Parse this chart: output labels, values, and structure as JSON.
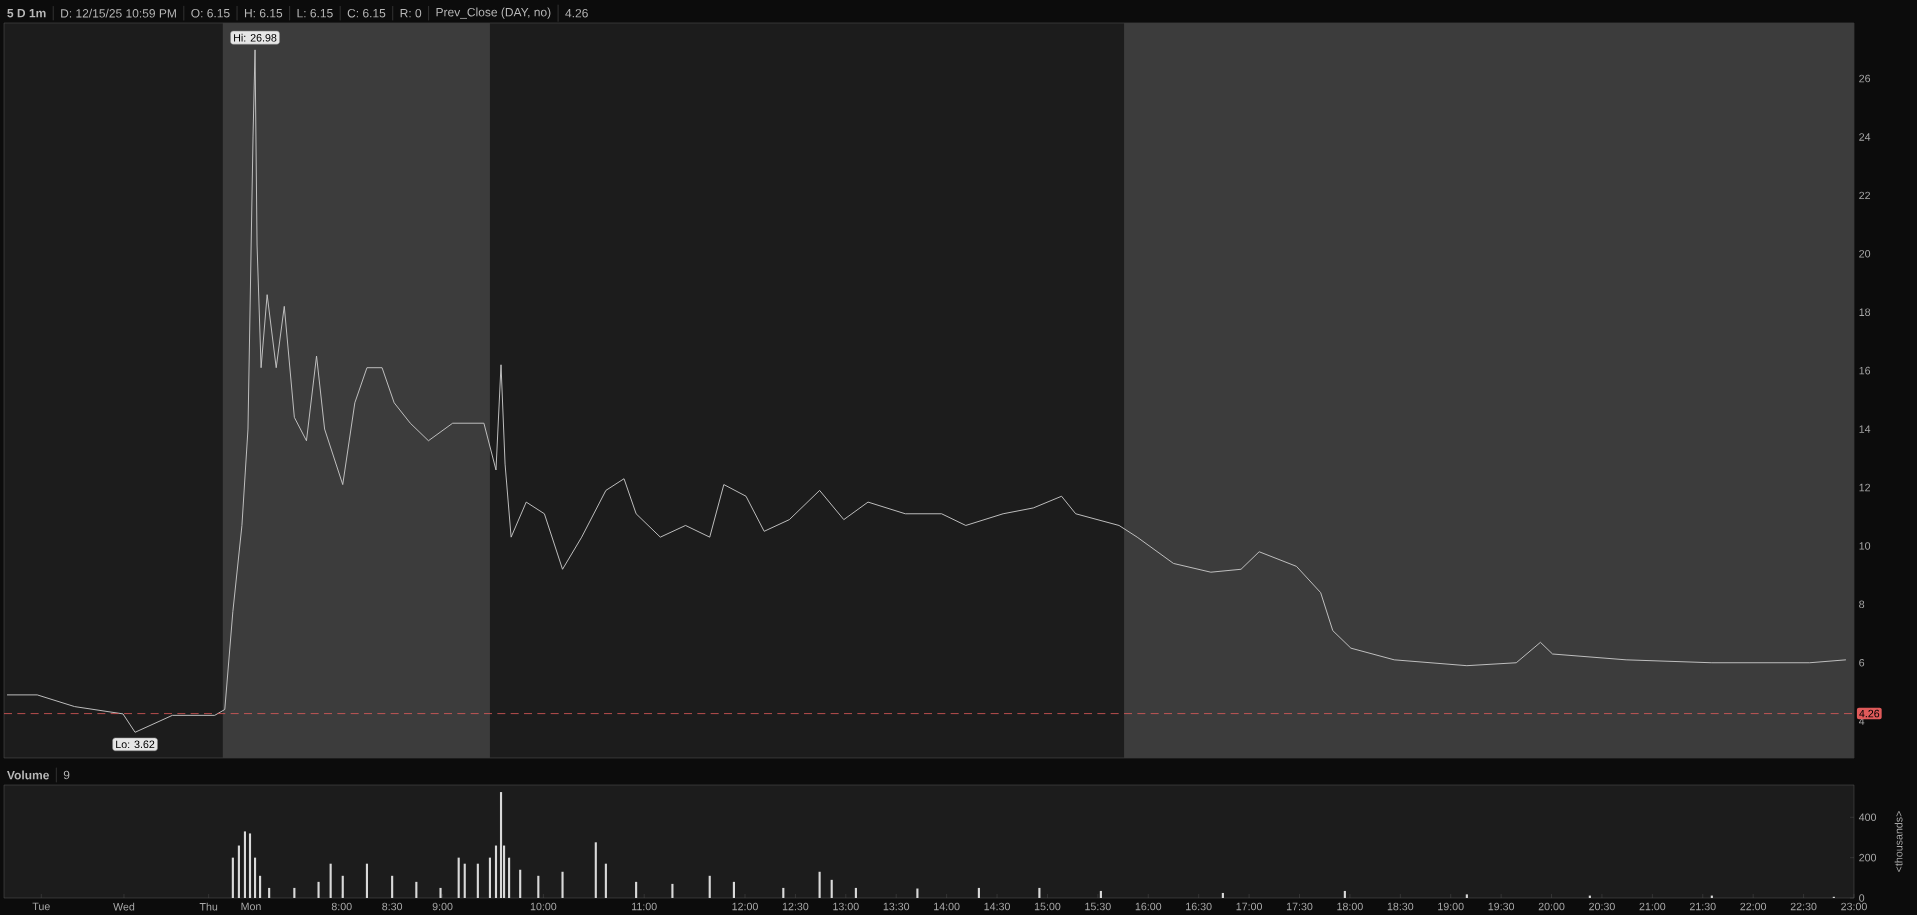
{
  "chart_data": [
    {
      "type": "line",
      "title": "5 D 1m",
      "subtitle": "D: 12/15/25 10:59 PM",
      "annotations": [
        "O: 6.15",
        "H: 6.15",
        "L: 6.15",
        "C: 6.15",
        "R: 0",
        "Prev_Close (DAY, no)",
        "4.26",
        {
          "text": "Hi: 26.98",
          "x": 7.14,
          "y": 26.98
        },
        {
          "text": "Lo: 3.62",
          "x": 5.95,
          "y": 3.62
        }
      ],
      "x": [
        4.68,
        4.98,
        5.35,
        5.83,
        5.95,
        6.32,
        6.74,
        6.84,
        6.92,
        7.01,
        7.07,
        7.12,
        7.14,
        7.16,
        7.2,
        7.26,
        7.35,
        7.43,
        7.53,
        7.65,
        7.75,
        7.83,
        8.01,
        8.13,
        8.25,
        8.4,
        8.52,
        8.68,
        8.86,
        9.1,
        9.41,
        9.53,
        9.58,
        9.62,
        9.68,
        9.83,
        10.01,
        10.19,
        10.38,
        10.62,
        10.8,
        10.92,
        11.16,
        11.41,
        11.65,
        11.79,
        12.01,
        12.19,
        12.44,
        12.74,
        12.98,
        13.22,
        13.59,
        13.95,
        14.19,
        14.56,
        14.86,
        15.14,
        15.28,
        15.71,
        15.89,
        16.25,
        16.62,
        16.92,
        17.1,
        17.47,
        17.71,
        17.83,
        18.01,
        18.44,
        19.16,
        19.65,
        19.89,
        20.01,
        20.74,
        21.59,
        22.56,
        22.92
      ],
      "series": [
        {
          "color": "#c8c8c8",
          "values": [
            4.9,
            4.9,
            4.5,
            4.25,
            3.62,
            4.2,
            4.2,
            4.4,
            7.75,
            10.7,
            14.0,
            24.0,
            26.98,
            20.3,
            16.1,
            18.6,
            16.1,
            18.2,
            14.4,
            13.6,
            16.5,
            14.0,
            12.1,
            14.9,
            16.1,
            16.1,
            14.9,
            14.2,
            13.6,
            14.2,
            14.2,
            12.6,
            16.2,
            12.8,
            10.3,
            11.5,
            11.1,
            9.2,
            10.3,
            11.9,
            12.3,
            11.1,
            10.3,
            10.7,
            10.3,
            12.1,
            11.7,
            10.5,
            10.9,
            11.9,
            10.9,
            11.5,
            11.1,
            11.1,
            10.7,
            11.1,
            11.3,
            11.7,
            11.1,
            10.7,
            10.3,
            9.4,
            9.1,
            9.2,
            9.8,
            9.3,
            8.4,
            7.1,
            6.5,
            6.1,
            5.9,
            6.0,
            6.7,
            6.3,
            6.1,
            6.0,
            6.0,
            6.1
          ]
        }
      ],
      "xlim": [
        4.65,
        23.0
      ],
      "ylim": [
        2.74,
        27.9
      ],
      "yticks": [
        4,
        6,
        8,
        10,
        12,
        14,
        16,
        18,
        20,
        22,
        24,
        26
      ],
      "tick_labels": "y",
      "marker": "none",
      "line_style": "solid",
      "ref_lines": [
        {
          "axis": "y",
          "value": 4.26,
          "label": "4.26",
          "color": "#e05a5a",
          "line_style": "dashed"
        }
      ],
      "bands": [
        {
          "axis": "x",
          "from": 6.82,
          "to": 9.47,
          "color": "#3c3c3c"
        },
        {
          "axis": "x",
          "from": 15.76,
          "to": 23.0,
          "color": "#3c3c3c"
        }
      ]
    },
    {
      "type": "bar",
      "title": "Volume",
      "ylabel": "<thousands>",
      "annotations": [
        "9"
      ],
      "x": [
        6.92,
        6.98,
        7.04,
        7.09,
        7.14,
        7.19,
        7.28,
        7.53,
        7.77,
        7.89,
        8.01,
        8.25,
        8.5,
        8.74,
        8.98,
        9.16,
        9.22,
        9.35,
        9.47,
        9.53,
        9.58,
        9.61,
        9.66,
        9.77,
        9.95,
        10.19,
        10.52,
        10.62,
        10.92,
        11.28,
        11.65,
        11.89,
        12.38,
        12.74,
        12.86,
        13.1,
        13.71,
        14.32,
        14.92,
        15.53,
        16.74,
        17.95,
        19.16,
        20.38,
        21.59,
        22.8
      ],
      "series": [
        {
          "color": "#d9d9d9",
          "values": [
            200,
            260,
            330,
            320,
            200,
            110,
            50,
            50,
            80,
            170,
            110,
            170,
            110,
            80,
            50,
            200,
            170,
            170,
            200,
            260,
            525,
            260,
            200,
            140,
            110,
            130,
            276,
            170,
            80,
            70,
            110,
            80,
            50,
            130,
            90,
            50,
            47,
            50,
            50,
            35,
            25,
            35,
            18,
            12,
            12,
            6
          ]
        }
      ],
      "xlim": [
        4.65,
        23.0
      ],
      "ylim": [
        0,
        560
      ],
      "yticks": [
        0,
        200,
        400
      ],
      "xticks": [
        {
          "value": 5.02,
          "label": "Tue"
        },
        {
          "value": 5.84,
          "label": "Wed"
        },
        {
          "value": 6.68,
          "label": "Thu"
        },
        {
          "value": 7.1,
          "label": "Mon"
        },
        {
          "value": 8,
          "label": "8:00"
        },
        {
          "value": 8.5,
          "label": "8:30"
        },
        {
          "value": 9,
          "label": "9:00"
        },
        {
          "value": 10,
          "label": "10:00"
        },
        {
          "value": 11,
          "label": "11:00"
        },
        {
          "value": 12,
          "label": "12:00"
        },
        {
          "value": 12.5,
          "label": "12:30"
        },
        {
          "value": 13,
          "label": "13:00"
        },
        {
          "value": 13.5,
          "label": "13:30"
        },
        {
          "value": 14,
          "label": "14:00"
        },
        {
          "value": 14.5,
          "label": "14:30"
        },
        {
          "value": 15,
          "label": "15:00"
        },
        {
          "value": 15.5,
          "label": "15:30"
        },
        {
          "value": 16,
          "label": "16:00"
        },
        {
          "value": 16.5,
          "label": "16:30"
        },
        {
          "value": 17,
          "label": "17:00"
        },
        {
          "value": 17.5,
          "label": "17:30"
        },
        {
          "value": 18,
          "label": "18:00"
        },
        {
          "value": 18.5,
          "label": "18:30"
        },
        {
          "value": 19,
          "label": "19:00"
        },
        {
          "value": 19.5,
          "label": "19:30"
        },
        {
          "value": 20,
          "label": "20:00"
        },
        {
          "value": 20.5,
          "label": "20:30"
        },
        {
          "value": 21,
          "label": "21:00"
        },
        {
          "value": 21.5,
          "label": "21:30"
        },
        {
          "value": 22,
          "label": "22:00"
        },
        {
          "value": 22.5,
          "label": "22:30"
        },
        {
          "value": 23,
          "label": "23:00"
        }
      ],
      "marker": "none"
    }
  ]
}
